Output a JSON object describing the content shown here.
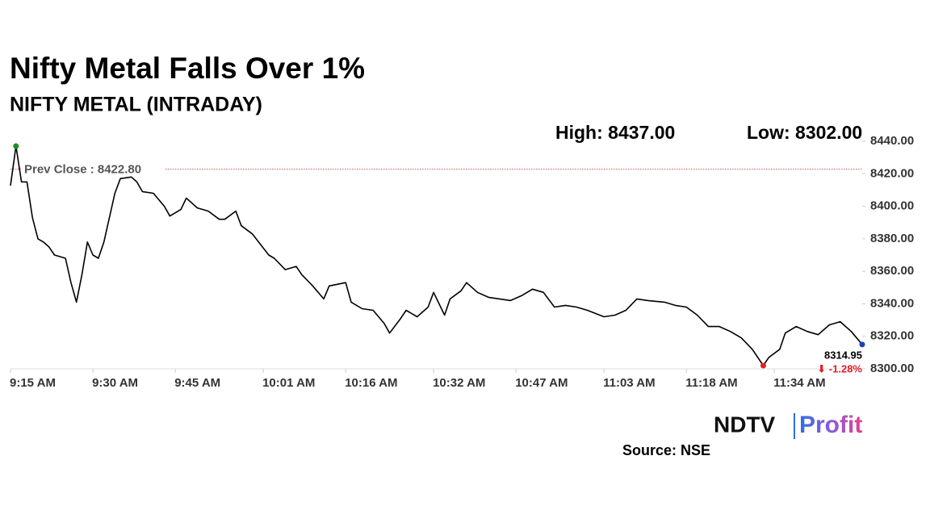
{
  "chart_data": {
    "type": "line",
    "title": "Nifty Metal Falls Over 1%",
    "subtitle": "NIFTY METAL (INTRADAY)",
    "high_label": "High: 8437.00",
    "low_label": "Low: 8302.00",
    "prev_close": {
      "value": 8422.8,
      "label": "Prev Close : 8422.80",
      "color": "#d9534f"
    },
    "change_label": "⬇ -1.28%",
    "change_color": "#e0202a",
    "source": "Source: NSE",
    "logo": "NDTV",
    "logo_sub": "Profit",
    "color": "#000000",
    "marker_colors": {
      "high": "#1e8f1e",
      "low": "#e0202a",
      "last": "#1f3fbf"
    },
    "x": [
      "9:15 AM",
      "9:16 AM",
      "9:17 AM",
      "9:18 AM",
      "9:19 AM",
      "9:20 AM",
      "9:21 AM",
      "9:22 AM",
      "9:23 AM",
      "9:25 AM",
      "9:26 AM",
      "9:27 AM",
      "9:28 AM",
      "9:29 AM",
      "9:30 AM",
      "9:31 AM",
      "9:32 AM",
      "9:33 AM",
      "9:34 AM",
      "9:35 AM",
      "9:37 AM",
      "9:38 AM",
      "9:39 AM",
      "9:41 AM",
      "9:43 AM",
      "9:44 AM",
      "9:46 AM",
      "9:47 AM",
      "9:49 AM",
      "9:51 AM",
      "9:53 AM",
      "9:54 AM",
      "9:56 AM",
      "9:57 AM",
      "9:59 AM",
      "10:02 AM",
      "10:03 AM",
      "10:05 AM",
      "10:07 AM",
      "10:08 AM",
      "10:10 AM",
      "10:12 AM",
      "10:13 AM",
      "10:16 AM",
      "10:17 AM",
      "10:19 AM",
      "10:21 AM",
      "10:23 AM",
      "10:24 AM",
      "10:26 AM",
      "10:27 AM",
      "10:29 AM",
      "10:31 AM",
      "10:32 AM",
      "10:34 AM",
      "10:35 AM",
      "10:37 AM",
      "10:38 AM",
      "10:40 AM",
      "10:42 AM",
      "10:44 AM",
      "10:46 AM",
      "10:48 AM",
      "10:50 AM",
      "10:52 AM",
      "10:54 AM",
      "10:56 AM",
      "10:58 AM",
      "11:00 AM",
      "11:03 AM",
      "11:05 AM",
      "11:07 AM",
      "11:09 AM",
      "11:11 AM",
      "11:14 AM",
      "11:16 AM",
      "11:18 AM",
      "11:20 AM",
      "11:22 AM",
      "11:24 AM",
      "11:26 AM",
      "11:28 AM",
      "11:30 AM",
      "11:32 AM",
      "11:33 AM",
      "11:35 AM",
      "11:36 AM",
      "11:38 AM",
      "11:40 AM",
      "11:42 AM",
      "11:44 AM",
      "11:46 AM",
      "11:48 AM",
      "11:50 AM"
    ],
    "values": [
      8412.7,
      8437,
      8415,
      8415,
      8393,
      8380,
      8378,
      8375,
      8370,
      8368,
      8353,
      8341,
      8358,
      8378,
      8370,
      8368,
      8378,
      8393,
      8408,
      8417,
      8418,
      8415,
      8409,
      8408,
      8400,
      8394,
      8398,
      8405,
      8399,
      8397,
      8392,
      8392,
      8397,
      8388,
      8383,
      8370,
      8368,
      8361,
      8363,
      8358,
      8351,
      8343,
      8351,
      8353,
      8341,
      8337,
      8336,
      8328,
      8322,
      8331,
      8336,
      8332,
      8338,
      8347,
      8333,
      8343,
      8348,
      8353,
      8347,
      8344,
      8343,
      8342,
      8345,
      8349,
      8347,
      8338,
      8339,
      8338,
      8336,
      8332,
      8333,
      8336,
      8343,
      8342,
      8341,
      8339,
      8338,
      8333,
      8326,
      8326,
      8323,
      8319,
      8312,
      8302,
      8307,
      8312,
      8322,
      8326,
      8323,
      8321,
      8327,
      8329,
      8323,
      8314.95
    ],
    "xlim": [
      "9:15 AM",
      "11:50 AM"
    ],
    "xticks": [
      "9:15 AM",
      "9:30 AM",
      "9:45 AM",
      "10:01 AM",
      "10:16 AM",
      "10:32 AM",
      "10:47 AM",
      "11:03 AM",
      "11:18 AM",
      "11:34 AM"
    ],
    "ylim": [
      8300,
      8440
    ],
    "yticks": [
      {
        "value": 8300,
        "label": "8300.00"
      },
      {
        "value": 8320,
        "label": "8320.00"
      },
      {
        "value": 8340,
        "label": "8340.00"
      },
      {
        "value": 8360,
        "label": "8360.00"
      },
      {
        "value": 8380,
        "label": "8380.00"
      },
      {
        "value": 8400,
        "label": "8400.00"
      },
      {
        "value": 8420,
        "label": "8420.00"
      },
      {
        "value": 8440,
        "label": "8440.00"
      }
    ],
    "grid": false
  }
}
